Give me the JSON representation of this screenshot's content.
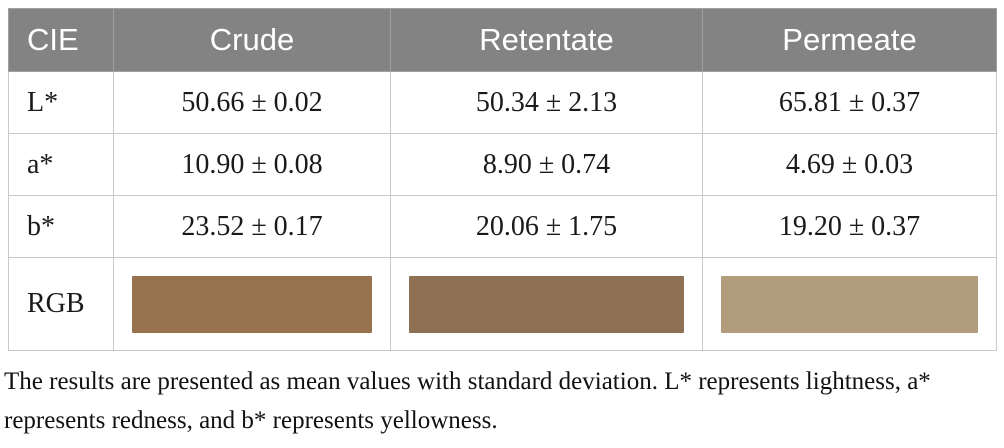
{
  "table": {
    "corner_label": "CIE",
    "column_headers": [
      "Crude",
      "Retentate",
      "Permeate"
    ],
    "rows": [
      {
        "label": "L*",
        "values": [
          "50.66 ± 0.02",
          "50.34 ± 2.13",
          "65.81 ± 0.37"
        ]
      },
      {
        "label": "a*",
        "values": [
          "10.90 ± 0.08",
          "8.90 ± 0.74",
          "4.69 ± 0.03"
        ]
      },
      {
        "label": "b*",
        "values": [
          "23.52 ± 0.17",
          "20.06 ± 1.75",
          "19.20 ± 0.37"
        ]
      }
    ],
    "rgb_row": {
      "label": "RGB",
      "swatches": [
        {
          "sample": "Crude",
          "color": "#96724F"
        },
        {
          "sample": "Retentate",
          "color": "#8E7155"
        },
        {
          "sample": "Permeate",
          "color": "#B19C7C"
        }
      ]
    }
  },
  "colors": {
    "header_bg": "#838383",
    "header_text": "#FFFFFF",
    "header_divider": "#A0A0A0",
    "grid_line": "#C9C9C9"
  },
  "footnote": "The results are presented as mean values with standard deviation. L* represents lightness, a* represents redness, and b* represents yellowness."
}
